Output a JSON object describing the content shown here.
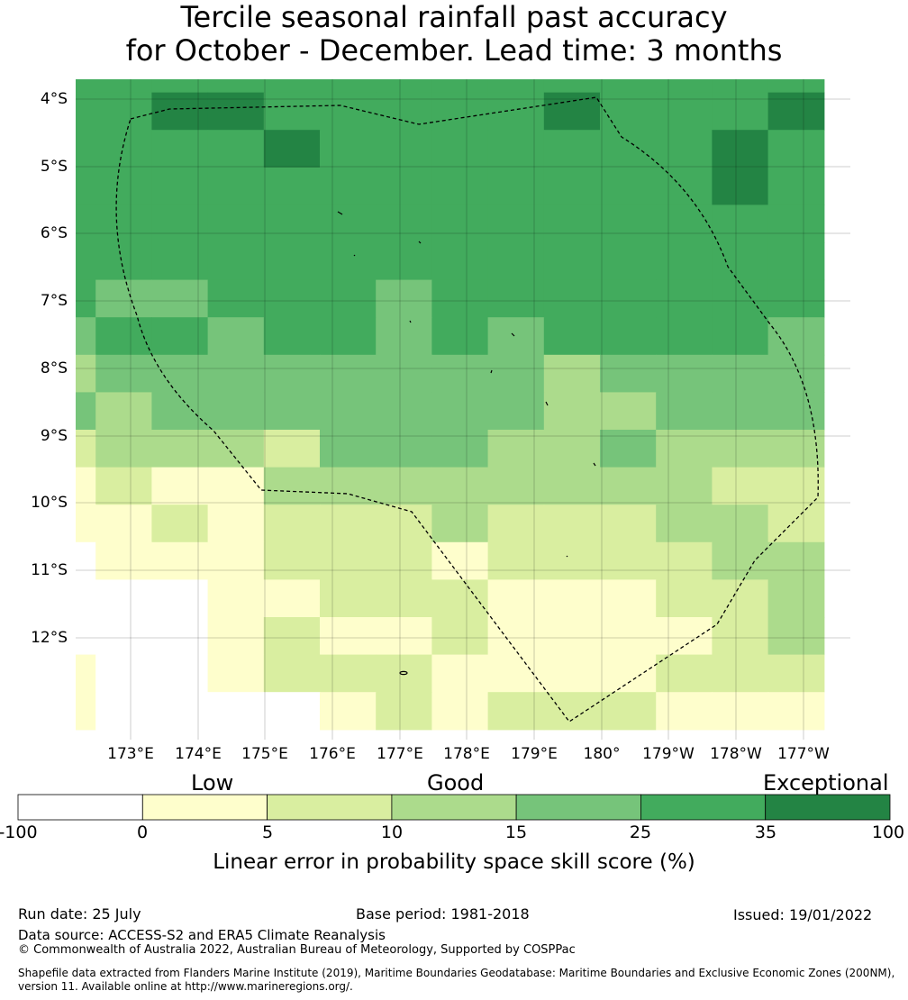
{
  "title": {
    "line1": "Tercile seasonal rainfall past accuracy",
    "line2": "for October - December. Lead time: 3 months"
  },
  "map": {
    "lat_labels": [
      "4°S",
      "5°S",
      "6°S",
      "7°S",
      "8°S",
      "9°S",
      "10°S",
      "11°S",
      "12°S"
    ],
    "lon_labels": [
      "173°E",
      "174°E",
      "175°E",
      "176°E",
      "177°E",
      "178°E",
      "179°E",
      "180°",
      "179°W",
      "178°W",
      "177°W"
    ],
    "grid": [
      [
        4,
        4,
        4,
        4,
        4,
        4,
        4,
        4,
        4,
        4,
        4,
        4,
        4,
        4
      ],
      [
        4,
        4,
        5,
        5,
        4,
        4,
        4,
        4,
        4,
        5,
        4,
        4,
        4,
        5
      ],
      [
        4,
        4,
        4,
        4,
        5,
        4,
        4,
        4,
        4,
        4,
        4,
        4,
        5,
        4
      ],
      [
        4,
        4,
        4,
        4,
        4,
        4,
        4,
        4,
        4,
        4,
        4,
        4,
        5,
        4
      ],
      [
        4,
        4,
        4,
        4,
        4,
        4,
        4,
        4,
        4,
        4,
        4,
        4,
        4,
        4
      ],
      [
        4,
        4,
        4,
        4,
        4,
        4,
        4,
        4,
        4,
        4,
        4,
        4,
        4,
        4
      ],
      [
        4,
        3,
        3,
        4,
        4,
        4,
        3,
        4,
        4,
        4,
        4,
        4,
        4,
        4
      ],
      [
        3,
        4,
        4,
        3,
        4,
        4,
        3,
        4,
        3,
        4,
        4,
        4,
        4,
        3
      ],
      [
        2,
        3,
        3,
        3,
        3,
        3,
        3,
        3,
        3,
        2,
        3,
        3,
        3,
        3
      ],
      [
        3,
        2,
        3,
        3,
        3,
        3,
        3,
        3,
        3,
        2,
        2,
        3,
        3,
        3
      ],
      [
        1,
        2,
        2,
        2,
        1,
        3,
        3,
        3,
        2,
        2,
        3,
        2,
        2,
        2
      ],
      [
        0,
        1,
        0,
        0,
        2,
        2,
        2,
        2,
        2,
        2,
        2,
        2,
        1,
        1
      ],
      [
        0,
        0,
        1,
        0,
        1,
        1,
        1,
        2,
        1,
        1,
        1,
        2,
        2,
        1
      ],
      [
        -1,
        0,
        0,
        0,
        1,
        1,
        1,
        0,
        1,
        1,
        1,
        1,
        2,
        2
      ],
      [
        -1,
        -1,
        -1,
        0,
        0,
        1,
        1,
        1,
        0,
        0,
        0,
        1,
        1,
        2
      ],
      [
        -1,
        -1,
        -1,
        0,
        1,
        0,
        0,
        1,
        0,
        0,
        0,
        0,
        1,
        2
      ],
      [
        0,
        -1,
        -1,
        0,
        1,
        1,
        1,
        0,
        0,
        0,
        0,
        1,
        1,
        1
      ],
      [
        0,
        -1,
        -1,
        -1,
        -1,
        0,
        1,
        0,
        1,
        1,
        1,
        0,
        0,
        0
      ]
    ]
  },
  "legend": {
    "categories": [
      "Low",
      "Good",
      "Exceptional"
    ],
    "ticks": [
      "-100",
      "0",
      "5",
      "10",
      "15",
      "25",
      "35",
      "100"
    ],
    "colors": [
      "#ffffff",
      "#fefecc",
      "#d9eea0",
      "#acdb8c",
      "#76c47a",
      "#42ab5d",
      "#238444"
    ],
    "title": "Linear error in probability space skill score (%)"
  },
  "footer": {
    "run_date": "Run date: 25 July",
    "base_period": "Base period: 1981-2018",
    "issued": "Issued: 19/01/2022",
    "data_source": "Data source: ACCESS-S2 and ERA5 Climate Reanalysis",
    "copyright": "© Commonwealth of Australia 2022, Australian Bureau of Meteorology, Supported by COSPPac",
    "shapefile": "Shapefile data extracted from Flanders Marine Institute (2019), Maritime Boundaries Geodatabase: Maritime Boundaries and Exclusive Economic Zones (200NM), version 11. Available online at http://www.marineregions.org/."
  }
}
